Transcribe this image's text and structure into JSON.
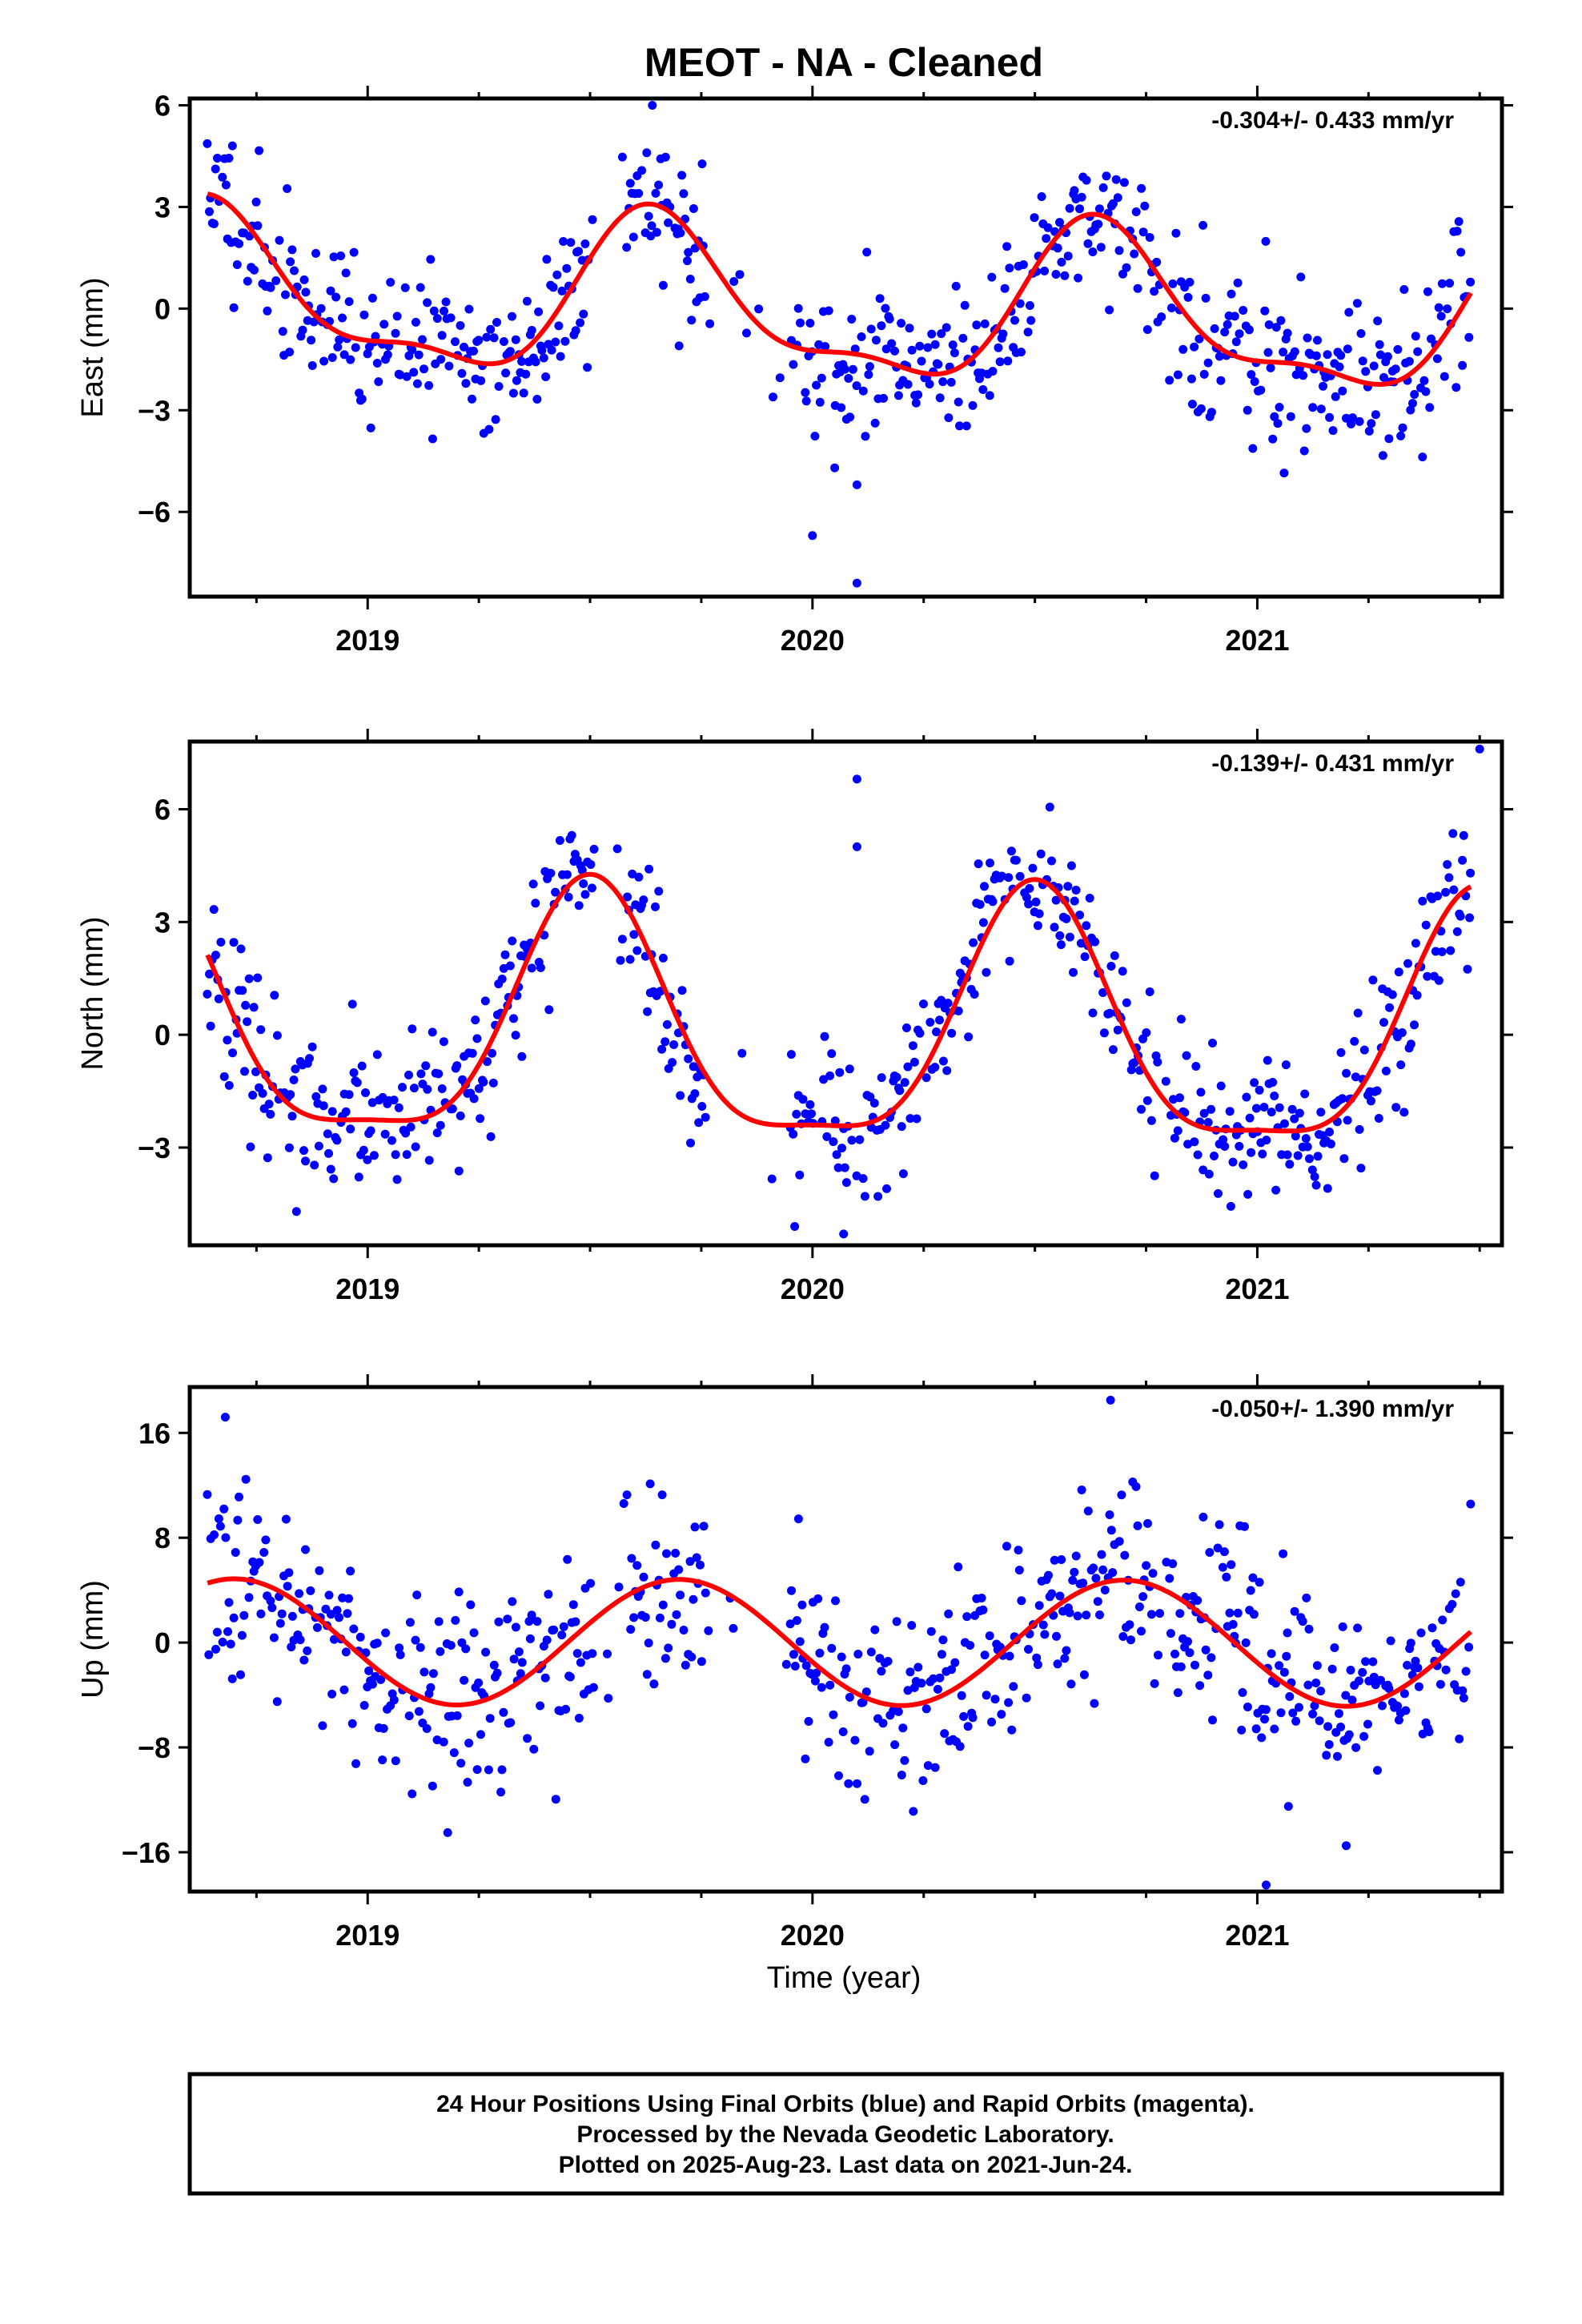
{
  "title": "MEOT  - NA - Cleaned",
  "xlabel": "Time (year)",
  "footer": {
    "line1": "24 Hour Positions Using Final Orbits (blue) and Rapid Orbits (magenta).",
    "line2": "Processed by the Nevada Geodetic Laboratory.",
    "line3": "Plotted on 2025-Aug-23. Last data on 2021-Jun-24."
  },
  "colors": {
    "points": "#0000ff",
    "fit": "#ff0000",
    "frame": "#000000"
  },
  "chart_data": [
    {
      "type": "scatter",
      "name": "East",
      "ylabel": "East (mm)",
      "rate": "-0.304+/- 0.433 mm/yr",
      "xlim": [
        2018.6,
        2021.55
      ],
      "ylim": [
        -8.5,
        6.2
      ],
      "yticks": [
        6,
        3,
        0,
        -3,
        -6
      ],
      "ytick_labels": [
        "6",
        "3",
        "0",
        "−3",
        "−6"
      ],
      "xticks": [
        2019,
        2020,
        2021
      ],
      "xtick_labels": [
        "2019",
        "2020",
        "2021"
      ],
      "x_minor_ticks": [
        2018.75,
        2019.25,
        2019.5,
        2019.75,
        2020.25,
        2020.5,
        2020.75,
        2021.25,
        2021.5
      ],
      "annual_amp": 2.2,
      "annual_peak": 2019.65,
      "semi_amp": 0.8,
      "semi_peak": 2019.62,
      "offset": 0.9,
      "trend": -0.304,
      "trend_ref": 2020.0,
      "noise": 1.15,
      "n_points": 760,
      "seed": 11,
      "outliers": [
        [
          2020.0,
          -6.7
        ],
        [
          2020.1,
          -5.2
        ],
        [
          2020.1,
          -8.1
        ],
        [
          2020.05,
          -4.7
        ],
        [
          2019.7,
          -1.1
        ],
        [
          2019.64,
          6.0
        ]
      ]
    },
    {
      "type": "scatter",
      "name": "North",
      "ylabel": "North (mm)",
      "rate": "-0.139+/- 0.431 mm/yr",
      "xlim": [
        2018.6,
        2021.55
      ],
      "ylim": [
        -5.6,
        7.8
      ],
      "yticks": [
        6,
        3,
        0,
        -3
      ],
      "ytick_labels": [
        "6",
        "3",
        "0",
        "−3"
      ],
      "xticks": [
        2019,
        2020,
        2021
      ],
      "xtick_labels": [
        "2019",
        "2020",
        "2021"
      ],
      "x_minor_ticks": [
        2018.75,
        2019.25,
        2019.5,
        2019.75,
        2020.25,
        2020.5,
        2020.75,
        2021.25,
        2021.5
      ],
      "annual_amp": 3.3,
      "annual_peak": 2019.5,
      "semi_amp": 0.9,
      "semi_peak": 2019.5,
      "offset": 1.6,
      "trend": -0.139,
      "trend_ref": 2020.0,
      "noise": 1.0,
      "n_points": 760,
      "seed": 23,
      "outliers": [
        [
          2020.1,
          6.8
        ],
        [
          2020.1,
          5.0
        ],
        [
          2020.07,
          -5.3
        ],
        [
          2019.96,
          -5.1
        ],
        [
          2018.84,
          -4.7
        ],
        [
          2021.5,
          7.6
        ]
      ]
    },
    {
      "type": "scatter",
      "name": "Up",
      "ylabel": "Up (mm)",
      "rate": "-0.050+/- 1.390 mm/yr",
      "xlim": [
        2018.6,
        2021.55
      ],
      "ylim": [
        -19,
        19.5
      ],
      "yticks": [
        16,
        8,
        0,
        -8,
        -16
      ],
      "ytick_labels": [
        "16",
        "8",
        "0",
        "−8",
        "−16"
      ],
      "xticks": [
        2019,
        2020,
        2021
      ],
      "xtick_labels": [
        "2019",
        "2020",
        "2021"
      ],
      "x_minor_ticks": [
        2018.75,
        2019.25,
        2019.5,
        2019.75,
        2020.25,
        2020.5,
        2020.75,
        2021.25,
        2021.5
      ],
      "annual_amp": 4.8,
      "annual_peak": 2019.7,
      "semi_amp": 0,
      "semi_peak": 2019.7,
      "offset": 0,
      "trend": -0.05,
      "trend_ref": 2020.0,
      "noise": 3.6,
      "n_points": 760,
      "seed": 37,
      "outliers": [
        [
          2020.67,
          18.5
        ],
        [
          2018.68,
          17.2
        ],
        [
          2021.2,
          -15.5
        ],
        [
          2021.02,
          -18.5
        ],
        [
          2019.18,
          -14.5
        ],
        [
          2021.07,
          -12.5
        ]
      ]
    }
  ]
}
